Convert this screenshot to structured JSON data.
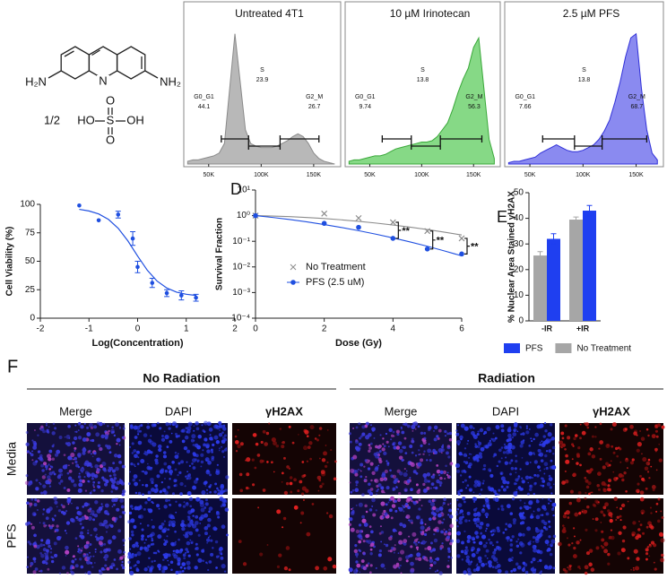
{
  "figure": {
    "structure": {
      "amine_left": "H₂N",
      "ring_nitrogen": "N",
      "amine_right": "NH₂",
      "ratio": "1/2",
      "hydroxyl_left": "HO",
      "sulfur": "S",
      "hydroxyl_right": "OH",
      "oxygen_top": "O",
      "oxygen_bottom": "O"
    },
    "panel_f": {
      "label": "F",
      "groups": [
        "No Radiation",
        "Radiation"
      ],
      "columns": [
        "Merge",
        "DAPI",
        "γH2AX"
      ],
      "rows": [
        "Media",
        "PFS"
      ]
    }
  },
  "chart_data": [
    {
      "type": "area",
      "title": "Untreated 4T1",
      "color": "#b8b8b8",
      "line_color": "#8a8a8a",
      "x": [
        30000,
        35000,
        40000,
        45000,
        50000,
        55000,
        60000,
        65000,
        70000,
        75000,
        80000,
        85000,
        90000,
        95000,
        100000,
        105000,
        110000,
        115000,
        120000,
        125000,
        130000,
        135000,
        140000,
        145000,
        150000,
        155000,
        160000,
        165000,
        170000
      ],
      "values": [
        2,
        3,
        3,
        4,
        5,
        6,
        8,
        15,
        55,
        95,
        60,
        25,
        15,
        13,
        12,
        12,
        12,
        13,
        15,
        17,
        20,
        22,
        20,
        15,
        8,
        4,
        2,
        1,
        0
      ],
      "xlim": [
        28000,
        174000
      ],
      "ylim": [
        0,
        100
      ],
      "xticks": [
        {
          "value": 50000,
          "label": "50K"
        },
        {
          "value": 100000,
          "label": "100K"
        },
        {
          "value": 150000,
          "label": "150K"
        }
      ],
      "gates": [
        {
          "name": "G0_G1",
          "value": 44.1,
          "range": [
            62000,
            88000
          ]
        },
        {
          "name": "S",
          "value": 23.9,
          "range": [
            88000,
            118000
          ]
        },
        {
          "name": "G2_M",
          "value": 26.7,
          "range": [
            118000,
            155000
          ]
        }
      ]
    },
    {
      "type": "area",
      "title": "10 µM Irinotecan",
      "color": "#86d986",
      "line_color": "#3aa83a",
      "x": [
        30000,
        35000,
        40000,
        45000,
        50000,
        55000,
        60000,
        65000,
        70000,
        75000,
        80000,
        85000,
        90000,
        95000,
        100000,
        105000,
        110000,
        115000,
        120000,
        125000,
        130000,
        135000,
        140000,
        145000,
        150000,
        155000,
        160000,
        165000,
        170000
      ],
      "values": [
        2,
        3,
        3,
        4,
        5,
        6,
        6,
        7,
        9,
        11,
        12,
        13,
        14,
        15,
        16,
        16,
        17,
        20,
        25,
        30,
        40,
        52,
        62,
        70,
        85,
        92,
        55,
        18,
        4
      ],
      "xlim": [
        28000,
        174000
      ],
      "ylim": [
        0,
        100
      ],
      "xticks": [
        {
          "value": 50000,
          "label": "50K"
        },
        {
          "value": 100000,
          "label": "100K"
        },
        {
          "value": 150000,
          "label": "150K"
        }
      ],
      "gates": [
        {
          "name": "G0_G1",
          "value": 9.74,
          "range": [
            62000,
            90000
          ]
        },
        {
          "name": "S",
          "value": 13.8,
          "range": [
            90000,
            118000
          ]
        },
        {
          "name": "G2_M",
          "value": 56.3,
          "range": [
            118000,
            158000
          ]
        }
      ]
    },
    {
      "type": "area",
      "title": "2.5 µM PFS",
      "color": "#8a8af0",
      "line_color": "#3030d8",
      "x": [
        30000,
        35000,
        40000,
        45000,
        50000,
        55000,
        60000,
        65000,
        70000,
        75000,
        80000,
        85000,
        90000,
        95000,
        100000,
        105000,
        110000,
        115000,
        120000,
        125000,
        130000,
        135000,
        140000,
        145000,
        150000,
        155000,
        160000,
        165000,
        170000
      ],
      "values": [
        1,
        2,
        2,
        3,
        4,
        5,
        8,
        10,
        12,
        14,
        12,
        10,
        9,
        9,
        10,
        12,
        14,
        18,
        24,
        32,
        45,
        60,
        78,
        92,
        95,
        55,
        25,
        8,
        3
      ],
      "xlim": [
        28000,
        174000
      ],
      "ylim": [
        0,
        100
      ],
      "xticks": [
        {
          "value": 50000,
          "label": "50K"
        },
        {
          "value": 100000,
          "label": "100K"
        },
        {
          "value": 150000,
          "label": "150K"
        }
      ],
      "gates": [
        {
          "name": "G0_G1",
          "value": 7.66,
          "range": [
            62000,
            92000
          ]
        },
        {
          "name": "S",
          "value": 13.8,
          "range": [
            92000,
            118000
          ]
        },
        {
          "name": "G2_M",
          "value": 68.7,
          "range": [
            118000,
            160000
          ]
        }
      ]
    },
    {
      "type": "scatter",
      "x_label": "Log(Concentration)",
      "y_label": "Cell Viability (%)",
      "color": "#1f4fe0",
      "x": [
        -1.2,
        -0.8,
        -0.4,
        -0.1,
        0,
        0.3,
        0.6,
        0.9,
        1.2
      ],
      "values": [
        99,
        86,
        91,
        70,
        45,
        31,
        22,
        20,
        18
      ],
      "errors": [
        0,
        0,
        3,
        6,
        5,
        4,
        3,
        4,
        3
      ],
      "fit_x": [
        -1.2,
        -1,
        -0.8,
        -0.6,
        -0.4,
        -0.2,
        0,
        0.2,
        0.4,
        0.6,
        0.8,
        1,
        1.2
      ],
      "fit_values": [
        95.6,
        94.2,
        91.6,
        86.8,
        79,
        67.9,
        54.6,
        42.1,
        32.6,
        26.5,
        22.9,
        21,
        20
      ],
      "xlim": [
        -2,
        2
      ],
      "xticks": [
        -2,
        -1,
        0,
        1,
        2
      ],
      "ylim": [
        0,
        100
      ],
      "yticks": [
        0,
        25,
        50,
        75,
        100
      ]
    },
    {
      "type": "line",
      "panel_label": "D",
      "x_label": "Dose (Gy)",
      "y_label": "Survival Fraction",
      "log_y": true,
      "xlim": [
        0,
        6
      ],
      "xticks": [
        0,
        2,
        4,
        6
      ],
      "ylim": [
        0.0001,
        10
      ],
      "yticks": [
        {
          "value": 10,
          "label": "10¹"
        },
        {
          "value": 1,
          "label": "10⁰"
        },
        {
          "value": 0.1,
          "label": "10⁻¹"
        },
        {
          "value": 0.01,
          "label": "10⁻²"
        },
        {
          "value": 0.001,
          "label": "10⁻³"
        },
        {
          "value": 0.0001,
          "label": "10⁻⁴"
        }
      ],
      "fit_x": [
        0,
        0.5,
        1,
        1.5,
        2,
        2.5,
        3,
        3.5,
        4,
        4.5,
        5,
        5.5,
        6
      ],
      "series": [
        {
          "name": "No Treatment",
          "color": "#8c8c8c",
          "marker": "x",
          "x": [
            0,
            2,
            3,
            4,
            5,
            6
          ],
          "values": [
            1,
            1.2,
            0.8,
            0.55,
            0.25,
            0.13
          ],
          "fit_values": [
            1,
            0.966,
            0.914,
            0.848,
            0.771,
            0.687,
            0.6,
            0.514,
            0.432,
            0.355,
            0.287,
            0.226,
            0.176
          ]
        },
        {
          "name": "PFS (2.5 uM)",
          "color": "#1f4fe0",
          "marker": "circle",
          "x": [
            0,
            2,
            3,
            4,
            5,
            6
          ],
          "values": [
            1,
            0.5,
            0.35,
            0.13,
            0.05,
            0.032
          ],
          "fit_values": [
            1,
            0.85,
            0.705,
            0.57,
            0.449,
            0.346,
            0.259,
            0.19,
            0.135,
            0.094,
            0.064,
            0.042,
            0.027
          ]
        }
      ],
      "annotations": [
        {
          "text": "**",
          "x": 4
        },
        {
          "text": "**",
          "x": 5
        },
        {
          "text": "**",
          "x": 6
        }
      ]
    },
    {
      "type": "bar",
      "panel_label": "E",
      "y_label": "% Nuclear Area Stained γH2AX",
      "categories": [
        "-IR",
        "+IR"
      ],
      "series": [
        {
          "name": "No Treatment",
          "color": "#a6a6a6",
          "values": [
            25.5,
            39.5
          ],
          "errors": [
            1.5,
            1
          ]
        },
        {
          "name": "PFS",
          "color": "#1f3ff0",
          "values": [
            32,
            43
          ],
          "errors": [
            2,
            2
          ]
        }
      ],
      "ylim": [
        0,
        50
      ],
      "yticks": [
        0,
        10,
        20,
        30,
        40,
        50
      ],
      "legend": "bottom"
    }
  ]
}
